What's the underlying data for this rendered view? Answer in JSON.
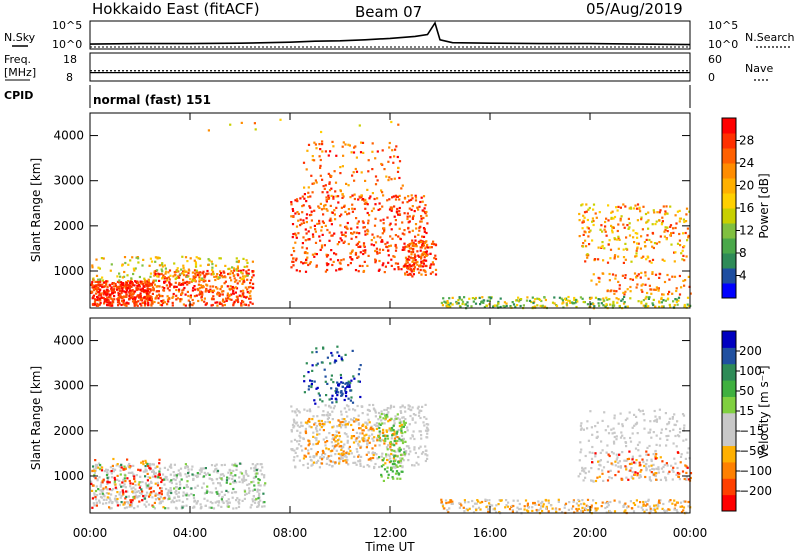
{
  "header": {
    "site": "Hokkaido East (fitACF)",
    "beam": "Beam 07",
    "date": "05/Aug/2019"
  },
  "left_labels": {
    "nsky": "N.Sky",
    "freq": "Freq.",
    "freq_unit": "[MHz]",
    "cpid": "CPID"
  },
  "right_labels": {
    "nsearch": "N.Search",
    "nave": "Nave"
  },
  "cpid_value": "normal (fast) 151",
  "xaxis": {
    "label": "Time UT",
    "ticks": [
      "00:00",
      "04:00",
      "08:00",
      "12:00",
      "16:00",
      "20:00",
      "00:00"
    ]
  },
  "colors": {
    "power": [
      "#0000ff",
      "#1e4ea0",
      "#2e8b57",
      "#4aa84a",
      "#80c040",
      "#c8d000",
      "#ffd000",
      "#ffb000",
      "#ff8c00",
      "#ff6000",
      "#ff3000",
      "#ff0000"
    ],
    "velocity": [
      "#ff0000",
      "#ff4000",
      "#ff8000",
      "#ffb000",
      "#c8c8c8",
      "#c8c8c8",
      "#80d040",
      "#40b040",
      "#2e8b57",
      "#2050a0",
      "#0000c0"
    ]
  },
  "chart_data": [
    {
      "type": "line",
      "name": "nsky-panel",
      "left_ticks": [
        "10^5",
        "10^0"
      ],
      "right_ticks": [
        "10^5",
        "10^0"
      ],
      "x_hours": [
        0,
        2,
        4,
        6,
        8,
        9,
        10,
        11,
        12,
        12.5,
        13,
        13.5,
        13.8,
        14,
        14.5,
        16,
        18,
        20,
        22,
        24
      ],
      "y_log": [
        0.6,
        0.7,
        0.7,
        0.8,
        1.0,
        1.2,
        1.3,
        1.5,
        1.8,
        2.0,
        2.2,
        2.6,
        5.0,
        1.5,
        0.9,
        0.8,
        0.7,
        0.7,
        0.6,
        0.5
      ]
    },
    {
      "type": "line",
      "name": "freq-panel",
      "left_ticks": [
        "18",
        "8"
      ],
      "right_ticks": [
        "60",
        "0"
      ],
      "freq_mhz": 11.0,
      "nave": 22
    },
    {
      "type": "heatmap",
      "name": "power-panel",
      "ylabel": "Slant Range [km]",
      "yticks": [
        1000,
        2000,
        3000,
        4000
      ],
      "ylim": [
        180,
        4500
      ],
      "colorbar_label": "Power [dB]",
      "colorbar_ticks": [
        4,
        8,
        12,
        16,
        20,
        24,
        28
      ],
      "colorbar_range": [
        0,
        32
      ]
    },
    {
      "type": "heatmap",
      "name": "velocity-panel",
      "ylabel": "Slant Range [km]",
      "yticks": [
        1000,
        2000,
        3000,
        4000
      ],
      "ylim": [
        180,
        4500
      ],
      "colorbar_label": "Velocity [m s⁻¹]",
      "colorbar_ticks": [
        -200,
        -100,
        -50,
        -15,
        15,
        50,
        100,
        200
      ]
    }
  ]
}
